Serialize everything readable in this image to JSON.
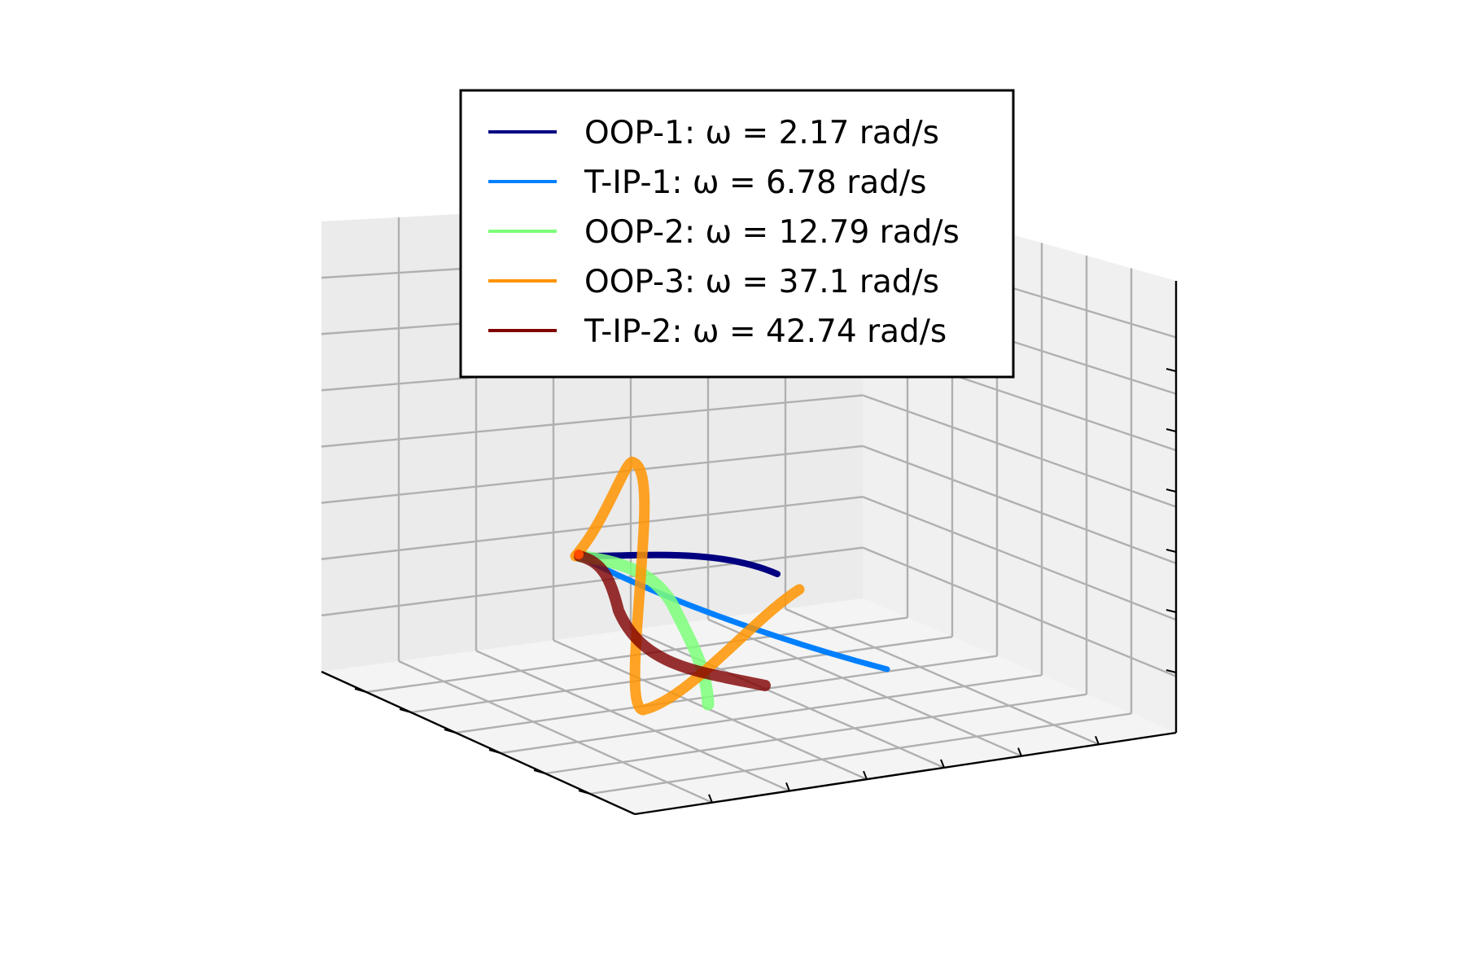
{
  "chart_data": {
    "type": "line",
    "projection": "3d",
    "title": "",
    "xlabel": "",
    "ylabel": "",
    "zlabel": "",
    "grid": true,
    "tick_labels_visible": false,
    "legend_position": "top-center",
    "series": [
      {
        "name": "OOP-1: ω = 2.17 rad/s",
        "mode": "OOP-1",
        "omega_rad_s": 2.17,
        "color": "#000080",
        "opacity": 1.0
      },
      {
        "name": "T-IP-1: ω = 6.78 rad/s",
        "mode": "T-IP-1",
        "omega_rad_s": 6.78,
        "color": "#0080ff",
        "opacity": 1.0
      },
      {
        "name": "OOP-2: ω = 12.79 rad/s",
        "mode": "OOP-2",
        "omega_rad_s": 12.79,
        "color": "#7dff7a",
        "opacity": 0.85
      },
      {
        "name": "OOP-3: ω = 37.1 rad/s",
        "mode": "OOP-3",
        "omega_rad_s": 37.1,
        "color": "#ff9400",
        "opacity": 0.85
      },
      {
        "name": "T-IP-2: ω = 42.74 rad/s",
        "mode": "T-IP-2",
        "omega_rad_s": 42.74,
        "color": "#800000",
        "opacity": 0.8
      }
    ]
  }
}
